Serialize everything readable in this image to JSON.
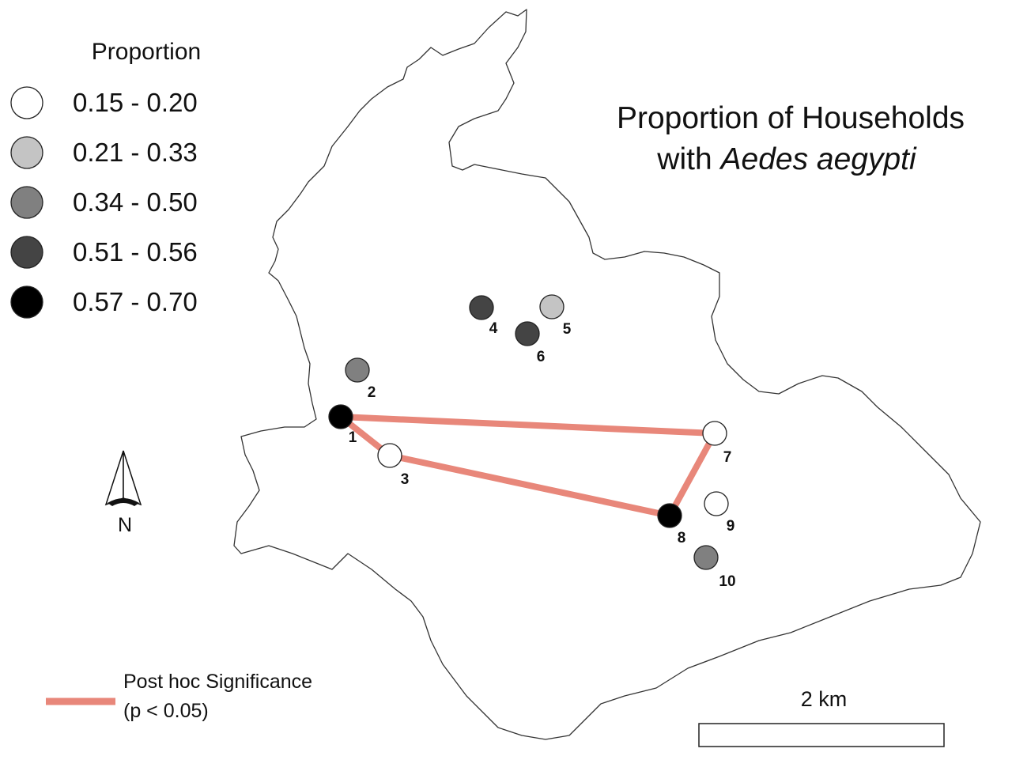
{
  "title": {
    "line1": "Proportion of Households",
    "line2_prefix": "with ",
    "line2_species": "Aedes aegypti"
  },
  "legend": {
    "heading": "Proportion",
    "classes": [
      {
        "label": "0.15 - 0.20",
        "color": "#ffffff"
      },
      {
        "label": "0.21 - 0.33",
        "color": "#c4c4c4"
      },
      {
        "label": "0.34 - 0.50",
        "color": "#808080"
      },
      {
        "label": "0.51 - 0.56",
        "color": "#444444"
      },
      {
        "label": "0.57 - 0.70",
        "color": "#000000"
      }
    ]
  },
  "sites": [
    {
      "id": "1",
      "class": 4
    },
    {
      "id": "2",
      "class": 2
    },
    {
      "id": "3",
      "class": 0
    },
    {
      "id": "4",
      "class": 3
    },
    {
      "id": "5",
      "class": 1
    },
    {
      "id": "6",
      "class": 3
    },
    {
      "id": "7",
      "class": 0
    },
    {
      "id": "8",
      "class": 4
    },
    {
      "id": "9",
      "class": 0
    },
    {
      "id": "10",
      "class": 2
    }
  ],
  "significance": {
    "color": "#e8877a",
    "label_line1": "Post hoc Significance",
    "label_line2": "(p < 0.05)",
    "pairs": [
      [
        "1",
        "7"
      ],
      [
        "1",
        "3"
      ],
      [
        "3",
        "8"
      ],
      [
        "8",
        "7"
      ]
    ]
  },
  "north_arrow": {
    "label": "N",
    "icon": "north-arrow-icon"
  },
  "scale_bar": {
    "label": "2 km"
  }
}
